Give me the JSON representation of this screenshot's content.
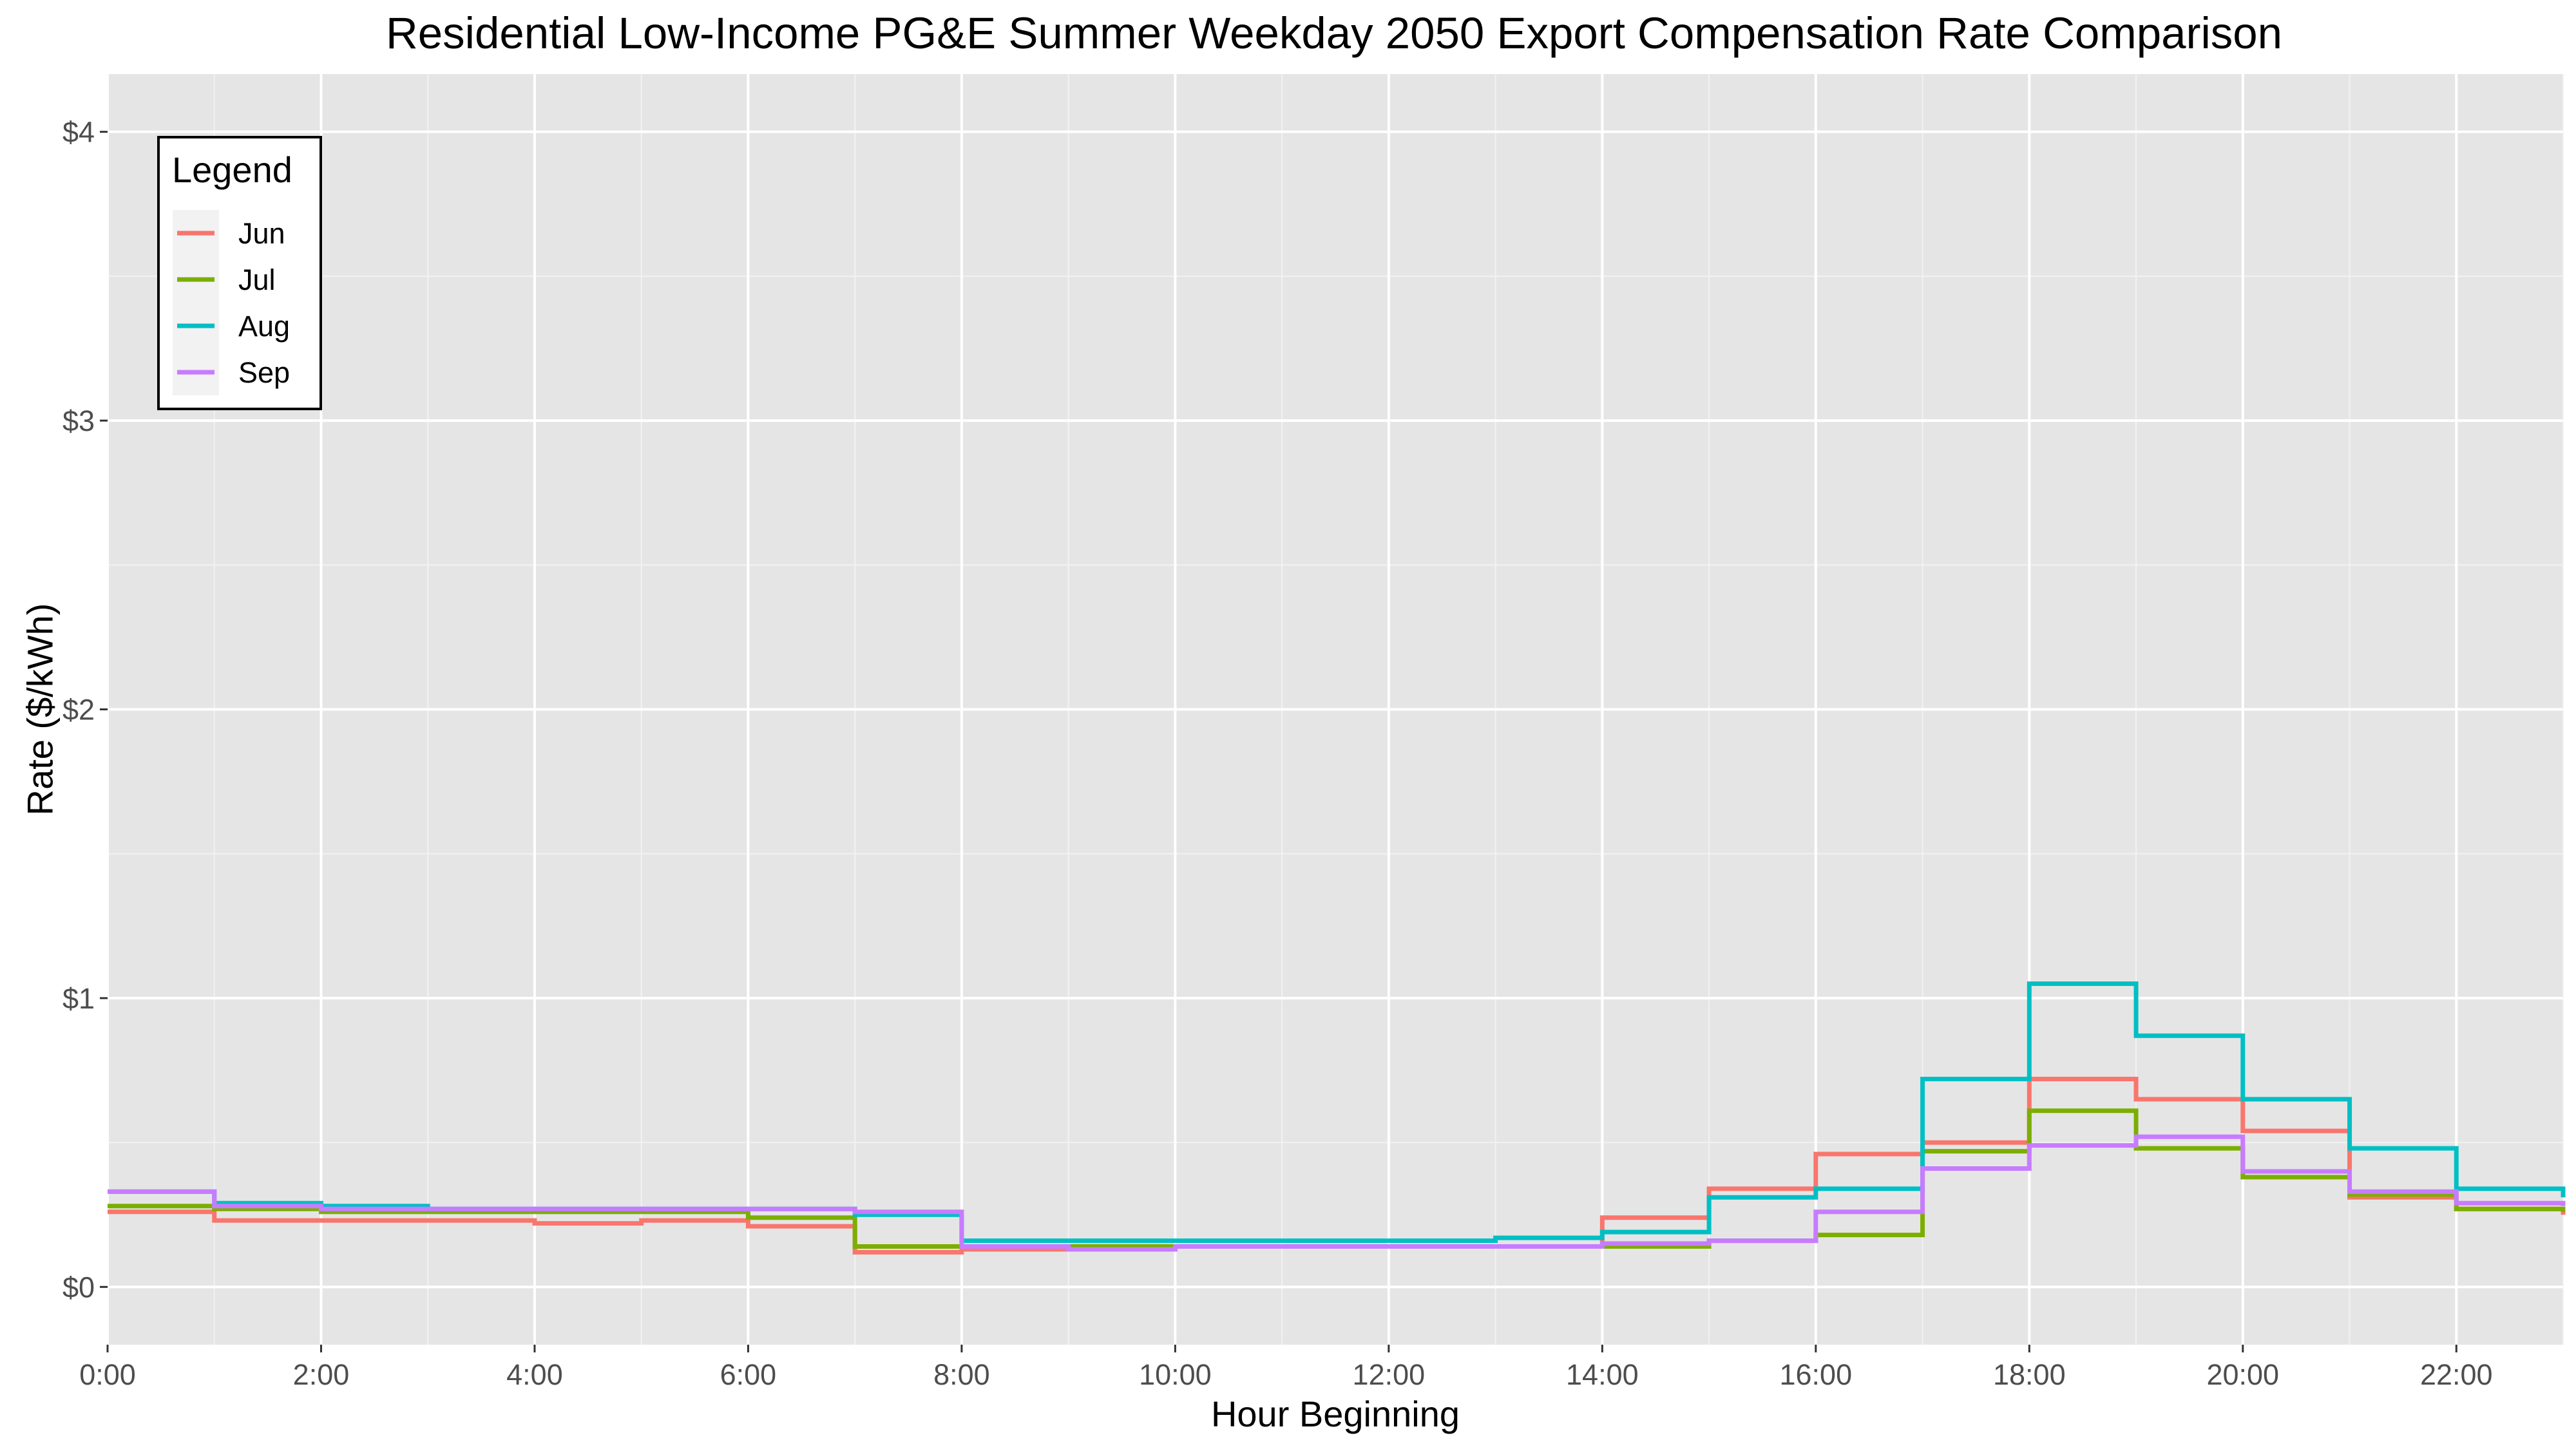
{
  "chart_data": {
    "type": "line",
    "step": true,
    "title": "Residential Low-Income PG&E Summer Weekday 2050 Export Compensation Rate Comparison",
    "xlabel": "Hour Beginning",
    "ylabel": "Rate ($/kWh)",
    "x_tick_labels": [
      "0:00",
      "2:00",
      "4:00",
      "6:00",
      "8:00",
      "10:00",
      "12:00",
      "14:00",
      "16:00",
      "18:00",
      "20:00",
      "22:00"
    ],
    "y_tick_labels": [
      "$0",
      "$1",
      "$2",
      "$3",
      "$4"
    ],
    "y_ticks": [
      0,
      1,
      2,
      3,
      4
    ],
    "xlim": [
      0,
      23
    ],
    "ylim": [
      -0.2,
      4.2
    ],
    "legend": {
      "title": "Legend",
      "position": "top-left"
    },
    "grid": true,
    "x": [
      0,
      1,
      2,
      3,
      4,
      5,
      6,
      7,
      8,
      9,
      10,
      11,
      12,
      13,
      14,
      15,
      16,
      17,
      18,
      19,
      20,
      21,
      22,
      23
    ],
    "series": [
      {
        "name": "Jun",
        "color": "#F8766D",
        "values": [
          0.26,
          0.23,
          0.23,
          0.23,
          0.22,
          0.23,
          0.21,
          0.12,
          0.13,
          0.13,
          0.14,
          0.14,
          0.14,
          0.14,
          0.24,
          0.34,
          0.46,
          0.5,
          0.72,
          0.65,
          0.54,
          0.31,
          0.27,
          0.25
        ]
      },
      {
        "name": "Jul",
        "color": "#7CAE00",
        "values": [
          0.28,
          0.27,
          0.26,
          0.26,
          0.26,
          0.26,
          0.24,
          0.14,
          0.14,
          0.14,
          0.14,
          0.14,
          0.14,
          0.14,
          0.14,
          0.16,
          0.18,
          0.47,
          0.61,
          0.48,
          0.38,
          0.32,
          0.27,
          0.26
        ]
      },
      {
        "name": "Aug",
        "color": "#00BFC4",
        "values": [
          0.33,
          0.29,
          0.28,
          0.27,
          0.27,
          0.27,
          0.27,
          0.25,
          0.16,
          0.16,
          0.16,
          0.16,
          0.16,
          0.17,
          0.19,
          0.31,
          0.34,
          0.72,
          1.05,
          0.87,
          0.65,
          0.48,
          0.34,
          0.31
        ]
      },
      {
        "name": "Sep",
        "color": "#C77CFF",
        "values": [
          0.33,
          0.28,
          0.27,
          0.27,
          0.27,
          0.27,
          0.27,
          0.26,
          0.14,
          0.13,
          0.14,
          0.14,
          0.14,
          0.14,
          0.15,
          0.16,
          0.26,
          0.41,
          0.49,
          0.52,
          0.4,
          0.33,
          0.29,
          0.28
        ]
      }
    ]
  }
}
